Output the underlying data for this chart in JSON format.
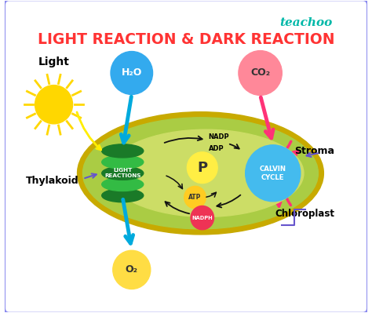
{
  "title": "LIGHT REACTION & DARK REACTION",
  "title_color": "#FF3333",
  "bg_color": "#FFFFFF",
  "border_color": "#8888EE",
  "teachoo_color": "#00B8A8",
  "teachoo_text": "teachoo",
  "chloroplast_border_color": "#C8AA00",
  "chloroplast_color": "#AACC44",
  "chloroplast_inner_color": "#CCDD66",
  "thylakoid_colors": [
    "#1A7A28",
    "#33BB44",
    "#1A7A28",
    "#33BB44",
    "#1A7A28"
  ],
  "thylakoid_label": "LIGHT\nREACTIONS",
  "calvin_color": "#44BBEE",
  "calvin_label": "CALVIN\nCYCLE",
  "h2o_color": "#33AAEE",
  "h2o_text": "H₂O",
  "co2_color": "#FF8899",
  "co2_text": "CO₂",
  "o2_color": "#FFDD44",
  "o2_text": "O₂",
  "p_color": "#FFEE44",
  "p_text": "P",
  "atp_color": "#FFCC22",
  "atp_text": "ATP",
  "nadph_color": "#EE3355",
  "nadph_text": "NADPH",
  "nadp_text": "NADP",
  "adp_text": "ADP",
  "light_text": "Light",
  "thylakoid_text": "Thylakoid",
  "stroma_text": "Stroma",
  "chloroplast_text": "Chloroplast",
  "arrow_color": "#00AADD",
  "cycle_arrow_color": "#FF3377",
  "sun_color": "#FFD700",
  "sun_ray_color": "#FFD700",
  "label_arrow_color": "#6655CC"
}
